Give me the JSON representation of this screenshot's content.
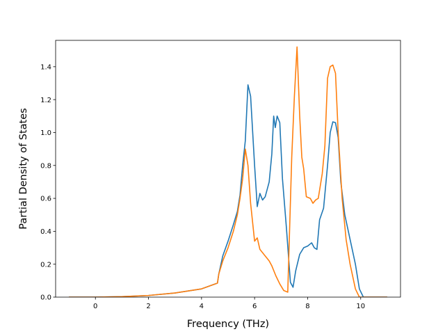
{
  "chart_data": {
    "type": "line",
    "title": "",
    "xlabel": "Frequency (THz)",
    "ylabel": "Partial Density of States",
    "xlim": [
      -1.5,
      11.5
    ],
    "ylim": [
      0,
      1.56
    ],
    "xticks": [
      0,
      2,
      4,
      6,
      8,
      10
    ],
    "yticks": [
      0.0,
      0.2,
      0.4,
      0.6,
      0.8,
      1.0,
      1.2,
      1.4
    ],
    "grid": false,
    "legend": "none",
    "series": [
      {
        "color": "#1f77b4",
        "x": [
          -1.0,
          0.0,
          1.0,
          2.0,
          3.0,
          4.0,
          4.6,
          4.65,
          4.8,
          5.0,
          5.2,
          5.35,
          5.45,
          5.55,
          5.65,
          5.75,
          5.85,
          6.0,
          6.1,
          6.2,
          6.3,
          6.4,
          6.55,
          6.65,
          6.72,
          6.78,
          6.85,
          6.95,
          7.05,
          7.2,
          7.35,
          7.45,
          7.55,
          7.7,
          7.85,
          8.0,
          8.15,
          8.25,
          8.35,
          8.45,
          8.6,
          8.75,
          8.85,
          8.95,
          9.05,
          9.15,
          9.25,
          9.4,
          9.6,
          9.8,
          9.95,
          10.1,
          10.3,
          11.0
        ],
        "y": [
          0.0,
          0.0,
          0.003,
          0.01,
          0.025,
          0.05,
          0.085,
          0.14,
          0.25,
          0.34,
          0.44,
          0.52,
          0.62,
          0.8,
          0.95,
          1.29,
          1.22,
          0.8,
          0.55,
          0.63,
          0.59,
          0.61,
          0.7,
          0.87,
          1.1,
          1.03,
          1.1,
          1.06,
          0.72,
          0.42,
          0.09,
          0.06,
          0.16,
          0.26,
          0.3,
          0.31,
          0.33,
          0.3,
          0.29,
          0.47,
          0.54,
          0.8,
          1.0,
          1.065,
          1.06,
          0.97,
          0.7,
          0.5,
          0.35,
          0.2,
          0.05,
          0.0,
          0.0,
          0.0
        ]
      },
      {
        "color": "#ff7f0e",
        "x": [
          -1.0,
          0.0,
          1.0,
          2.0,
          3.0,
          4.0,
          4.6,
          4.65,
          4.8,
          5.0,
          5.2,
          5.35,
          5.45,
          5.55,
          5.65,
          5.75,
          5.85,
          6.0,
          6.1,
          6.2,
          6.3,
          6.4,
          6.55,
          6.65,
          6.8,
          6.95,
          7.1,
          7.25,
          7.4,
          7.5,
          7.6,
          7.7,
          7.78,
          7.85,
          7.95,
          8.1,
          8.2,
          8.3,
          8.4,
          8.55,
          8.65,
          8.75,
          8.85,
          8.95,
          9.05,
          9.15,
          9.3,
          9.45,
          9.6,
          9.8,
          9.95,
          10.1,
          10.3,
          11.0
        ],
        "y": [
          0.0,
          0.0,
          0.003,
          0.01,
          0.025,
          0.05,
          0.085,
          0.14,
          0.22,
          0.3,
          0.4,
          0.5,
          0.6,
          0.72,
          0.9,
          0.8,
          0.57,
          0.34,
          0.36,
          0.29,
          0.27,
          0.25,
          0.22,
          0.19,
          0.13,
          0.08,
          0.04,
          0.03,
          0.85,
          1.22,
          1.52,
          1.1,
          0.85,
          0.78,
          0.61,
          0.6,
          0.57,
          0.59,
          0.6,
          0.75,
          0.92,
          1.33,
          1.4,
          1.41,
          1.36,
          1.0,
          0.6,
          0.35,
          0.2,
          0.05,
          0.0,
          0.0,
          0.0,
          0.0
        ]
      }
    ]
  }
}
